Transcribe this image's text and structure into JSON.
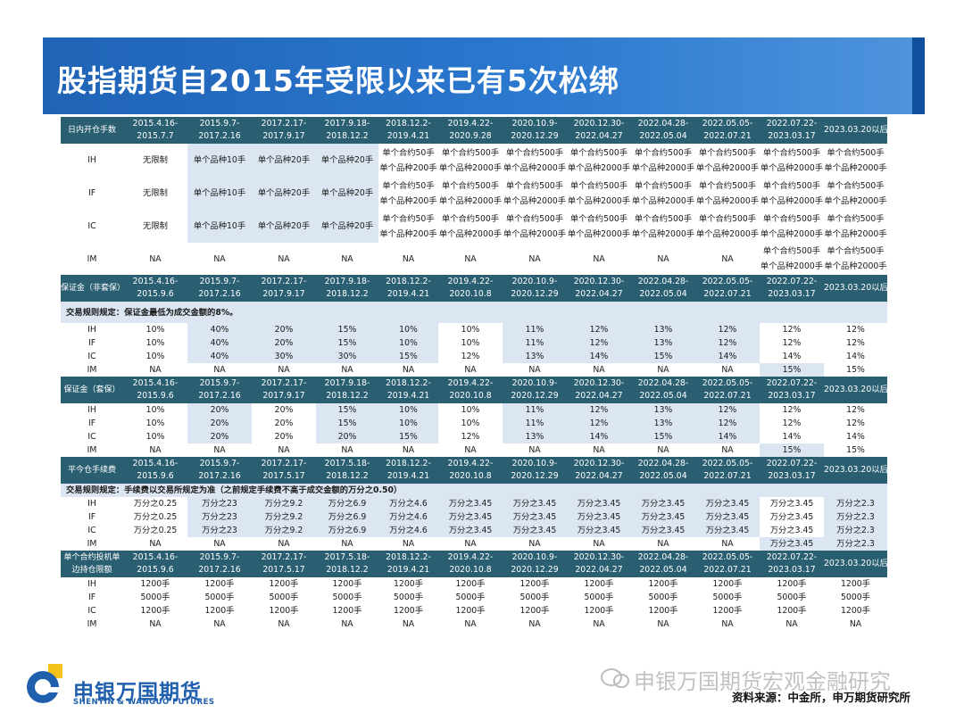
{
  "title": "股指期货自2015年受限以来已有5次松绑",
  "periods_a": [
    "2015.4.16-\n2015.7.7",
    "2015.9.7-\n2017.2.16",
    "2017.2.17-\n2017.9.17",
    "2017.9.18-\n2018.12.2",
    "2018.12.2-\n2019.4.21",
    "2019.4.22-\n2020.9.28",
    "2020.10.9-\n2020.12.29",
    "2020.12.30-\n2022.04.27",
    "2022.04.28-\n2022.05.04",
    "2022.05.05-\n2022.07.21",
    "2022.07.22-\n2023.03.17",
    "2023.03.20以后"
  ],
  "periods_b": [
    "2015.4.16-\n2015.9.6",
    "2015.9.7-\n2017.2.16",
    "2017.2.17-\n2017.9.17",
    "2017.9.18-\n2018.12.2",
    "2018.12.2-\n2019.4.21",
    "2019.4.22-\n2020.10.8",
    "2020.10.9-\n2020.12.29",
    "2020.12.30-\n2022.04.27",
    "2022.04.28-\n2022.05.04",
    "2022.05.05-\n2022.07.21",
    "2022.07.22-\n2023.03.17",
    "2023.03.20以后"
  ],
  "periods_c": [
    "2015.4.16-\n2015.9.6",
    "2015.9.7-\n2017.2.16",
    "2017.2.17-\n2017.5.17",
    "2017.5.18-\n2018.12.2",
    "2018.12.2-\n2019.4.21",
    "2019.4.22-\n2020.10.8",
    "2020.10.9-\n2020.12.29",
    "2020.12.30-\n2022.04.27",
    "2022.04.28-\n2022.05.04",
    "2022.05.05-\n2022.07.21",
    "2022.07.22-\n2023.03.17",
    "2023.03.20以后"
  ],
  "sections": [
    {
      "label": "日内开仓手数",
      "periods": "a",
      "rows": [
        {
          "name": "IH",
          "cells": [
            "无限制",
            "单个品种10手",
            "单个品种20手",
            "单个品种20手",
            "单个合约50手\n单个品种200手",
            "单个合约500手\n单个品种2000手",
            "单个合约500手\n单个品种2000手",
            "单个合约500手\n单个品种2000手",
            "单个合约500手\n单个品种2000手",
            "单个合约500手\n单个品种2000手",
            "单个合约500手\n单个品种2000手",
            "单个合约500手\n单个品种2000手"
          ]
        },
        {
          "name": "IF",
          "cells": [
            "无限制",
            "单个品种10手",
            "单个品种20手",
            "单个品种20手",
            "单个合约50手\n单个品种200手",
            "单个合约500手\n单个品种2000手",
            "单个合约500手\n单个品种2000手",
            "单个合约500手\n单个品种2000手",
            "单个合约500手\n单个品种2000手",
            "单个合约500手\n单个品种2000手",
            "单个合约500手\n单个品种2000手",
            "单个合约500手\n单个品种2000手"
          ]
        },
        {
          "name": "IC",
          "cells": [
            "无限制",
            "单个品种10手",
            "单个品种20手",
            "单个品种20手",
            "单个合约50手\n单个品种200手",
            "单个合约500手\n单个品种2000手",
            "单个合约500手\n单个品种2000手",
            "单个合约500手\n单个品种2000手",
            "单个合约500手\n单个品种2000手",
            "单个合约500手\n单个品种2000手",
            "单个合约500手\n单个品种2000手",
            "单个合约500手\n单个品种2000手"
          ]
        },
        {
          "name": "IM",
          "cells": [
            "NA",
            "NA",
            "NA",
            "NA",
            "NA",
            "NA",
            "NA",
            "NA",
            "NA",
            "NA",
            "单个合约500手\n单个品种2000手",
            "单个合约500手\n单个品种2000手"
          ]
        }
      ]
    },
    {
      "label": "保证金（非套保）",
      "periods": "b",
      "note": "交易规则规定：保证金最低为成交金额的8%。",
      "rows": [
        {
          "name": "IH",
          "cells": [
            "10%",
            "40%",
            "20%",
            "15%",
            "10%",
            "10%",
            "11%",
            "12%",
            "13%",
            "12%",
            "12%",
            "12%"
          ]
        },
        {
          "name": "IF",
          "cells": [
            "10%",
            "40%",
            "20%",
            "15%",
            "10%",
            "10%",
            "11%",
            "12%",
            "13%",
            "12%",
            "12%",
            "12%"
          ]
        },
        {
          "name": "IC",
          "cells": [
            "10%",
            "40%",
            "30%",
            "30%",
            "15%",
            "12%",
            "13%",
            "14%",
            "15%",
            "14%",
            "14%",
            "14%"
          ]
        },
        {
          "name": "IM",
          "cells": [
            "NA",
            "NA",
            "NA",
            "NA",
            "NA",
            "NA",
            "NA",
            "NA",
            "NA",
            "NA",
            "15%",
            "15%"
          ]
        }
      ]
    },
    {
      "label": "保证金（套保）",
      "periods": "b",
      "rows": [
        {
          "name": "IH",
          "cells": [
            "10%",
            "20%",
            "20%",
            "15%",
            "10%",
            "10%",
            "11%",
            "12%",
            "13%",
            "12%",
            "12%",
            "12%"
          ]
        },
        {
          "name": "IF",
          "cells": [
            "10%",
            "20%",
            "20%",
            "15%",
            "10%",
            "10%",
            "11%",
            "12%",
            "13%",
            "12%",
            "12%",
            "12%"
          ]
        },
        {
          "name": "IC",
          "cells": [
            "10%",
            "20%",
            "20%",
            "20%",
            "15%",
            "12%",
            "13%",
            "14%",
            "15%",
            "14%",
            "14%",
            "14%"
          ]
        },
        {
          "name": "IM",
          "cells": [
            "NA",
            "NA",
            "NA",
            "NA",
            "NA",
            "NA",
            "NA",
            "NA",
            "NA",
            "NA",
            "15%",
            "15%"
          ]
        }
      ]
    },
    {
      "label": "平今仓手续费",
      "periods": "c",
      "note": "交易规则规定：手续费以交易所规定为准（之前规定手续费不高于成交金额的万分之0.50）",
      "rows": [
        {
          "name": "IH",
          "cells": [
            "万分之0.25",
            "万分之23",
            "万分之9.2",
            "万分之6.9",
            "万分之4.6",
            "万分之3.45",
            "万分之3.45",
            "万分之3.45",
            "万分之3.45",
            "万分之3.45",
            "万分之3.45",
            "万分之2.3"
          ]
        },
        {
          "name": "IF",
          "cells": [
            "万分之0.25",
            "万分之23",
            "万分之9.2",
            "万分之6.9",
            "万分之4.6",
            "万分之3.45",
            "万分之3.45",
            "万分之3.45",
            "万分之3.45",
            "万分之3.45",
            "万分之3.45",
            "万分之2.3"
          ]
        },
        {
          "name": "IC",
          "cells": [
            "万分之0.25",
            "万分之23",
            "万分之9.2",
            "万分之6.9",
            "万分之4.6",
            "万分之3.45",
            "万分之3.45",
            "万分之3.45",
            "万分之3.45",
            "万分之3.45",
            "万分之3.45",
            "万分之2.3"
          ]
        },
        {
          "name": "IM",
          "cells": [
            "NA",
            "NA",
            "NA",
            "NA",
            "NA",
            "NA",
            "NA",
            "NA",
            "NA",
            "NA",
            "万分之3.45",
            "万分之2.3"
          ]
        }
      ]
    },
    {
      "label": "单个合约投机单\n边持仓限额",
      "periods": "c",
      "rows": [
        {
          "name": "IH",
          "cells": [
            "1200手",
            "1200手",
            "1200手",
            "1200手",
            "1200手",
            "1200手",
            "1200手",
            "1200手",
            "1200手",
            "1200手",
            "1200手",
            "1200手"
          ]
        },
        {
          "name": "IF",
          "cells": [
            "5000手",
            "5000手",
            "5000手",
            "5000手",
            "5000手",
            "5000手",
            "5000手",
            "5000手",
            "5000手",
            "5000手",
            "5000手",
            "5000手"
          ]
        },
        {
          "name": "IC",
          "cells": [
            "1200手",
            "1200手",
            "1200手",
            "1200手",
            "1200手",
            "1200手",
            "1200手",
            "1200手",
            "1200手",
            "1200手",
            "1200手",
            "1200手"
          ]
        },
        {
          "name": "IM",
          "cells": [
            "NA",
            "NA",
            "NA",
            "NA",
            "NA",
            "NA",
            "NA",
            "NA",
            "NA",
            "NA",
            "NA",
            "NA"
          ]
        }
      ]
    }
  ],
  "footer": {
    "brand": "申银万国期货",
    "brand_en": "SHENYIN & WANGUO FUTURES",
    "watermark": "申银万国期货宏观金融研究",
    "source": "资料来源：中金所，申万期货研究所"
  },
  "colors": {
    "header_bg": "#2a5f72",
    "highlight": "#dce6f2",
    "title_bg": "#2b78cf",
    "brand": "#1f5fad"
  }
}
